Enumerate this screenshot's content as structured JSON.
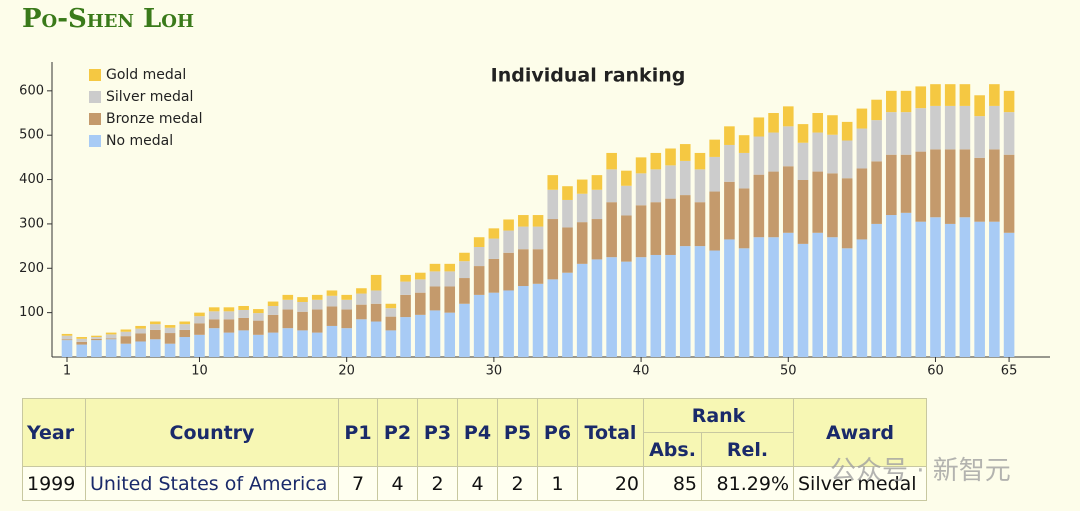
{
  "page_title": "Po-Shen Loh",
  "chart_data": {
    "type": "bar",
    "stacked": true,
    "title": "Individual ranking",
    "x": [
      1,
      2,
      3,
      4,
      5,
      6,
      7,
      8,
      9,
      10,
      11,
      12,
      13,
      14,
      15,
      16,
      17,
      18,
      19,
      20,
      21,
      22,
      23,
      24,
      25,
      26,
      27,
      28,
      29,
      30,
      31,
      32,
      33,
      34,
      35,
      36,
      37,
      38,
      39,
      40,
      41,
      42,
      43,
      44,
      45,
      46,
      47,
      48,
      49,
      50,
      51,
      52,
      53,
      54,
      55,
      56,
      57,
      58,
      59,
      60,
      61,
      62,
      63,
      64,
      65
    ],
    "xlim": [
      0,
      66
    ],
    "xticks": [
      1,
      10,
      20,
      30,
      40,
      50,
      60,
      65
    ],
    "ylim": [
      0,
      665
    ],
    "yticks": [
      100,
      200,
      300,
      400,
      500,
      600
    ],
    "legend": "top-left",
    "series": [
      {
        "name": "Gold medal",
        "color": "#f5c842",
        "values": [
          4,
          4,
          3,
          4,
          5,
          6,
          6,
          6,
          6,
          8,
          9,
          9,
          9,
          9,
          10,
          11,
          11,
          11,
          12,
          11,
          12,
          35,
          10,
          15,
          15,
          17,
          17,
          19,
          22,
          23,
          25,
          26,
          26,
          33,
          31,
          32,
          33,
          37,
          34,
          36,
          37,
          38,
          38,
          37,
          39,
          42,
          40,
          43,
          44,
          45,
          42,
          44,
          44,
          42,
          45,
          46,
          48,
          48,
          49,
          49,
          49,
          49,
          47,
          49,
          48
        ]
      },
      {
        "name": "Silver medal",
        "color": "#cccccc",
        "values": [
          8,
          7,
          4,
          9,
          10,
          11,
          13,
          12,
          13,
          16,
          18,
          18,
          18,
          17,
          20,
          22,
          22,
          22,
          24,
          22,
          25,
          30,
          19,
          30,
          30,
          34,
          34,
          38,
          43,
          46,
          50,
          51,
          51,
          66,
          62,
          64,
          66,
          74,
          67,
          72,
          74,
          75,
          77,
          74,
          78,
          83,
          80,
          86,
          88,
          90,
          84,
          88,
          87,
          85,
          90,
          93,
          96,
          96,
          98,
          98,
          98,
          98,
          94,
          98,
          96
        ]
      },
      {
        "name": "Bronze medal",
        "color": "#c49a6c",
        "values": [
          2,
          6,
          3,
          2,
          17,
          18,
          21,
          24,
          16,
          26,
          20,
          30,
          28,
          32,
          40,
          42,
          42,
          52,
          44,
          42,
          33,
          40,
          31,
          50,
          50,
          54,
          59,
          58,
          65,
          76,
          85,
          83,
          78,
          136,
          102,
          94,
          91,
          124,
          104,
          117,
          119,
          127,
          115,
          99,
          133,
          130,
          135,
          141,
          148,
          150,
          144,
          138,
          144,
          158,
          160,
          141,
          136,
          131,
          158,
          153,
          168,
          153,
          144,
          163,
          176
        ]
      },
      {
        "name": "No medal",
        "color": "#a8cbf5",
        "values": [
          38,
          28,
          38,
          40,
          30,
          35,
          40,
          30,
          45,
          50,
          65,
          55,
          60,
          50,
          55,
          65,
          60,
          55,
          70,
          65,
          85,
          80,
          60,
          90,
          95,
          105,
          100,
          120,
          140,
          145,
          150,
          160,
          165,
          175,
          190,
          210,
          220,
          225,
          215,
          225,
          230,
          230,
          250,
          250,
          240,
          265,
          245,
          270,
          270,
          280,
          255,
          280,
          270,
          245,
          265,
          300,
          320,
          325,
          305,
          315,
          300,
          315,
          305,
          305,
          280
        ]
      }
    ]
  },
  "table": {
    "headers": [
      "Year",
      "Country",
      "P1",
      "P2",
      "P3",
      "P4",
      "P5",
      "P6",
      "Total"
    ],
    "rank_header": "Rank",
    "rank_sub": [
      "Abs.",
      "Rel."
    ],
    "award_header": "Award",
    "row": [
      "1999",
      "United States of America",
      7,
      4,
      2,
      4,
      2,
      1,
      20,
      85,
      "81.29%",
      "Silver medal"
    ]
  },
  "watermark": "公众号 · 新智元"
}
